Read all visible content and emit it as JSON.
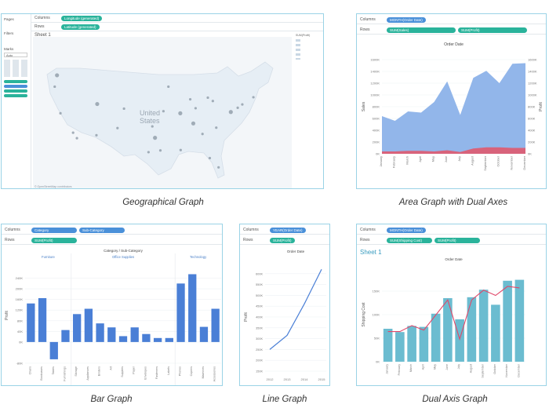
{
  "captions": {
    "geo": "Geographical Graph",
    "area": "Area Graph with Dual Axes",
    "bar": "Bar Graph",
    "line": "Line Graph",
    "dual": "Dual Axis Graph"
  },
  "geo_panel": {
    "shelf_columns_label": "Columns",
    "shelf_rows_label": "Rows",
    "columns_pill": "Longitude (generated)",
    "rows_pill": "Latitude (generated)",
    "sheet_title": "Sheet 1",
    "pages_label": "Pages",
    "filters_label": "Filters",
    "marks_label": "Marks",
    "marks_type": "Auto",
    "map_label_line1": "United",
    "map_label_line2": "States",
    "legend_title": "SUM(Profit)",
    "attribution": "© OpenStreetMap contributors"
  },
  "area_panel": {
    "shelf_columns_label": "Columns",
    "shelf_rows_label": "Rows",
    "columns_pill": "MONTH(Order Date)",
    "rows_pills": [
      "SUM(Sales)",
      "SUM(Profit)"
    ]
  },
  "bar_panel": {
    "shelf_columns_label": "Columns",
    "shelf_rows_label": "Rows",
    "columns_pills": [
      "Category",
      "Sub-Category"
    ],
    "rows_pill": "SUM(Profit)"
  },
  "line_panel": {
    "shelf_columns_label": "Columns",
    "shelf_rows_label": "Rows",
    "columns_pill": "YEAR(Order Date)",
    "rows_pill": "SUM(Profit)"
  },
  "dual_panel": {
    "shelf_columns_label": "Columns",
    "shelf_rows_label": "Rows",
    "columns_pill": "MONTH(Order Date)",
    "rows_pills": [
      "SUM(Shipping Cost)",
      "SUM(Profit)"
    ],
    "sheet_title": "Sheet 1"
  },
  "colors": {
    "blue_area": "#86aee8",
    "red_area": "#e05a6f",
    "bar_blue": "#4a7fd6",
    "line_blue": "#4a7fd6",
    "teal_bar": "#6bbcd0",
    "pink_line": "#e0486a",
    "map_land": "#e6eef5",
    "map_dot": "#8f9ba8"
  },
  "chart_data": [
    {
      "type": "scatter",
      "id": "geo",
      "title": "",
      "points": [
        {
          "lon": -122.4,
          "lat": 47.6
        },
        {
          "lon": -123.0,
          "lat": 44.9
        },
        {
          "lon": -121.5,
          "lat": 38.6
        },
        {
          "lon": -118.2,
          "lat": 34.0
        },
        {
          "lon": -117.2,
          "lat": 32.7
        },
        {
          "lon": -111.9,
          "lat": 40.8
        },
        {
          "lon": -112.1,
          "lat": 33.4
        },
        {
          "lon": -104.9,
          "lat": 39.7
        },
        {
          "lon": -106.6,
          "lat": 35.1
        },
        {
          "lon": -97.5,
          "lat": 35.5
        },
        {
          "lon": -96.8,
          "lat": 32.8
        },
        {
          "lon": -95.4,
          "lat": 29.8
        },
        {
          "lon": -98.5,
          "lat": 29.4
        },
        {
          "lon": -93.3,
          "lat": 44.9
        },
        {
          "lon": -94.6,
          "lat": 39.1
        },
        {
          "lon": -90.2,
          "lat": 38.6
        },
        {
          "lon": -87.6,
          "lat": 41.9
        },
        {
          "lon": -86.2,
          "lat": 39.8
        },
        {
          "lon": -83.0,
          "lat": 42.3
        },
        {
          "lon": -84.4,
          "lat": 33.7
        },
        {
          "lon": -86.8,
          "lat": 36.2
        },
        {
          "lon": -81.7,
          "lat": 41.5
        },
        {
          "lon": -80.8,
          "lat": 35.2
        },
        {
          "lon": -80.2,
          "lat": 25.8
        },
        {
          "lon": -82.5,
          "lat": 28.0
        },
        {
          "lon": -77.0,
          "lat": 38.9
        },
        {
          "lon": -75.2,
          "lat": 39.9
        },
        {
          "lon": -74.0,
          "lat": 40.7
        },
        {
          "lon": -71.1,
          "lat": 42.4
        },
        {
          "lon": -90.1,
          "lat": 29.9
        }
      ],
      "legend": [
        "SUM(Profit)"
      ]
    },
    {
      "type": "area",
      "id": "area",
      "title": "Order Date",
      "categories": [
        "January",
        "February",
        "March",
        "April",
        "May",
        "June",
        "July",
        "August",
        "September",
        "October",
        "November",
        "December"
      ],
      "series": [
        {
          "name": "SUM(Sales)",
          "values": [
            640,
            560,
            720,
            700,
            880,
            1230,
            660,
            1290,
            1410,
            1200,
            1530,
            1540
          ]
        },
        {
          "name": "SUM(Profit)",
          "values": [
            40,
            40,
            50,
            50,
            40,
            60,
            30,
            90,
            110,
            110,
            100,
            100
          ]
        }
      ],
      "ylabel_left": "Sales",
      "ylabel_right": "Profit",
      "ylim": [
        0,
        1600
      ],
      "yticks": [
        "0K",
        "200K",
        "400K",
        "600K",
        "800K",
        "1000K",
        "1200K",
        "1400K",
        "1600K"
      ]
    },
    {
      "type": "bar",
      "id": "bar",
      "title": "Category / Sub-Category",
      "groups": [
        {
          "name": "Furniture",
          "categories": [
            "Chairs",
            "Bookcases",
            "Tables",
            "Furnishings"
          ],
          "values": [
            145,
            165,
            -65,
            45
          ]
        },
        {
          "name": "Office Supplies",
          "categories": [
            "Storage",
            "Appliances",
            "Binders",
            "Art",
            "Supplies",
            "Paper",
            "Envelopes",
            "Fasteners",
            "Labels"
          ],
          "values": [
            105,
            125,
            70,
            55,
            22,
            55,
            30,
            15,
            15
          ]
        },
        {
          "name": "Technology",
          "categories": [
            "Phones",
            "Copiers",
            "Machines",
            "Accessories"
          ],
          "values": [
            220,
            255,
            57,
            125
          ]
        }
      ],
      "ylabel": "Profit",
      "ylim": [
        -80,
        280
      ],
      "yticks": [
        "-80K",
        "0K",
        "40K",
        "80K",
        "120K",
        "160K",
        "200K",
        "240K"
      ]
    },
    {
      "type": "line",
      "id": "line",
      "title": "Order Date",
      "x": [
        "2012",
        "2013",
        "2014",
        "2015"
      ],
      "series": [
        {
          "name": "",
          "values": [
            250,
            315,
            460,
            620
          ]
        }
      ],
      "ylabel": "Profit",
      "ylim": [
        150,
        650
      ],
      "yticks": [
        "150K",
        "200K",
        "250K",
        "300K",
        "350K",
        "400K",
        "450K",
        "500K",
        "550K",
        "600K"
      ]
    },
    {
      "type": "bar",
      "id": "dual",
      "title": "Order Date",
      "categories": [
        "January",
        "February",
        "March",
        "April",
        "May",
        "June",
        "July",
        "August",
        "September",
        "October",
        "November",
        "December"
      ],
      "series": [
        {
          "name": "SUM(Shipping Cost)",
          "values": [
            70,
            63,
            76,
            74,
            102,
            135,
            90,
            137,
            153,
            121,
            172,
            174
          ]
        },
        {
          "name": "SUM(Profit)",
          "values": [
            40,
            40,
            48,
            42,
            62,
            82,
            30,
            82,
            95,
            88,
            100,
            98
          ]
        }
      ],
      "ylabel": "Shipping Cost",
      "ylim": [
        0,
        200
      ],
      "yticks": [
        "0K",
        "50K",
        "100K",
        "150K"
      ]
    }
  ]
}
